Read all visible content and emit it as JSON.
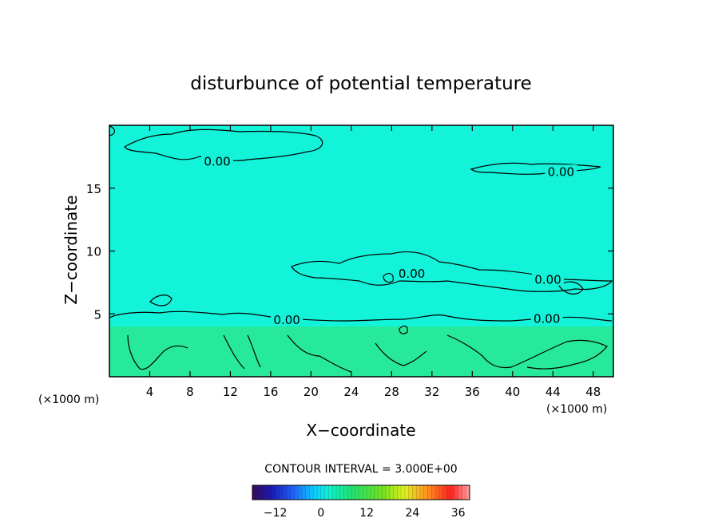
{
  "chart_data": {
    "type": "contour",
    "title": "disturbunce of potential temperature",
    "xlabel": "X−coordinate",
    "ylabel": "Z−coordinate",
    "x_unit": "(×1000 m)",
    "x_unit_right": "(×1000 m)",
    "xlim": [
      0,
      50
    ],
    "ylim": [
      0,
      20
    ],
    "x_ticks": [
      4,
      8,
      12,
      16,
      20,
      24,
      28,
      32,
      36,
      40,
      44,
      48
    ],
    "y_ticks": [
      5,
      10,
      15
    ],
    "x_tick_labels": [
      "4",
      "8",
      "12",
      "16",
      "20",
      "24",
      "28",
      "32",
      "36",
      "40",
      "44",
      "48"
    ],
    "y_tick_labels": [
      "5",
      "10",
      "15"
    ],
    "contour_labels": [
      {
        "text": "0.00",
        "x": 10.7,
        "z": 17.1
      },
      {
        "text": "0.00",
        "x": 44.8,
        "z": 16.3
      },
      {
        "text": "0.00",
        "x": 30.0,
        "z": 8.2
      },
      {
        "text": "0.00",
        "x": 43.5,
        "z": 7.7
      },
      {
        "text": "0.00",
        "x": 17.6,
        "z": 4.5
      },
      {
        "text": "0.00",
        "x": 43.4,
        "z": 4.6
      }
    ],
    "regions": [
      {
        "z_min": 4.0,
        "z_max": 20,
        "value": 0,
        "color": "#12f3d9"
      },
      {
        "z_min": 0,
        "z_max": 4.0,
        "value": 3,
        "color": "#27e99b"
      }
    ],
    "contour_interval_label": "CONTOUR INTERVAL = 3.000E+00",
    "colorbar": {
      "min": -18,
      "max": 39,
      "ticks": [
        -12,
        0,
        12,
        24,
        36
      ],
      "tick_labels": [
        "−12",
        "0",
        "12",
        "24",
        "36"
      ],
      "stops": [
        {
          "v": -18,
          "c": "#3a0a5a"
        },
        {
          "v": -13,
          "c": "#1a1ab0"
        },
        {
          "v": -7,
          "c": "#1e66ff"
        },
        {
          "v": -2,
          "c": "#10c8ff"
        },
        {
          "v": 2,
          "c": "#10f0d0"
        },
        {
          "v": 8,
          "c": "#20e070"
        },
        {
          "v": 16,
          "c": "#70e020"
        },
        {
          "v": 22,
          "c": "#e0f020"
        },
        {
          "v": 28,
          "c": "#ff9020"
        },
        {
          "v": 34,
          "c": "#ff2020"
        },
        {
          "v": 39,
          "c": "#ffa0a0"
        }
      ]
    }
  }
}
